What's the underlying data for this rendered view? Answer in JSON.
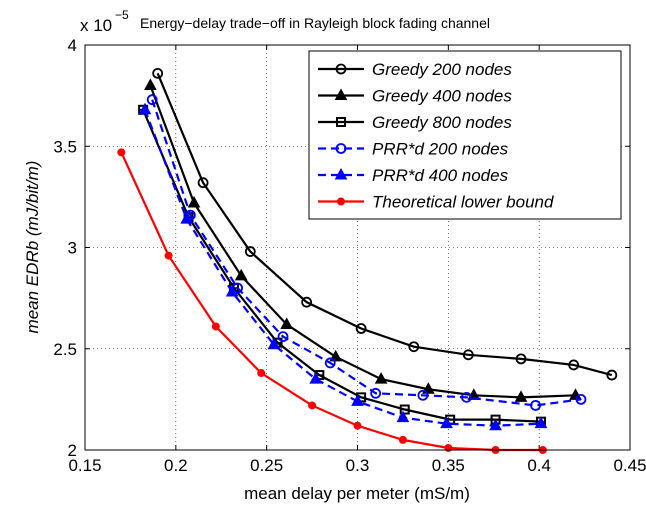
{
  "chart_data": {
    "type": "line",
    "title": "Energy−delay trade−off in Rayleigh block fading channel",
    "y_multiplier_label": "x 10",
    "y_multiplier_exponent": "−5",
    "xlabel": "mean delay per meter (mS/m)",
    "ylabel": "mean EDRb (mJ/bit/m)",
    "xlim": [
      0.15,
      0.45
    ],
    "ylim": [
      2,
      4
    ],
    "xticks": [
      0.15,
      0.2,
      0.25,
      0.3,
      0.35,
      0.4,
      0.45
    ],
    "xtick_labels": [
      "0.15",
      "0.2",
      "0.25",
      "0.3",
      "0.35",
      "0.4",
      "0.45"
    ],
    "yticks": [
      2,
      2.5,
      3,
      3.5,
      4
    ],
    "ytick_labels": [
      "2",
      "2.5",
      "3",
      "3.5",
      "4"
    ],
    "grid": true,
    "legend_position": "top-right",
    "series": [
      {
        "name": "Greedy 200 nodes",
        "color": "#000000",
        "dash": false,
        "marker": "circle-open",
        "x": [
          0.19,
          0.215,
          0.241,
          0.272,
          0.302,
          0.331,
          0.361,
          0.39,
          0.419,
          0.44
        ],
        "y": [
          3.86,
          3.32,
          2.98,
          2.73,
          2.6,
          2.51,
          2.47,
          2.45,
          2.42,
          2.37
        ]
      },
      {
        "name": "Greedy 400 nodes",
        "color": "#000000",
        "dash": false,
        "marker": "triangle",
        "x": [
          0.186,
          0.21,
          0.236,
          0.261,
          0.288,
          0.313,
          0.339,
          0.364,
          0.39,
          0.42
        ],
        "y": [
          3.8,
          3.22,
          2.86,
          2.62,
          2.46,
          2.35,
          2.3,
          2.27,
          2.26,
          2.27
        ]
      },
      {
        "name": "Greedy 800 nodes",
        "color": "#000000",
        "dash": false,
        "marker": "square",
        "x": [
          0.182,
          0.207,
          0.232,
          0.256,
          0.279,
          0.302,
          0.326,
          0.351,
          0.376,
          0.401
        ],
        "y": [
          3.68,
          3.15,
          2.8,
          2.53,
          2.37,
          2.26,
          2.2,
          2.15,
          2.15,
          2.14
        ]
      },
      {
        "name": "PRR*d 200 nodes",
        "color": "#0000ff",
        "dash": true,
        "marker": "circle-open",
        "x": [
          0.187,
          0.208,
          0.234,
          0.259,
          0.285,
          0.31,
          0.336,
          0.36,
          0.398,
          0.423
        ],
        "y": [
          3.73,
          3.16,
          2.8,
          2.56,
          2.43,
          2.28,
          2.27,
          2.26,
          2.22,
          2.25
        ]
      },
      {
        "name": "PRR*d 400 nodes",
        "color": "#0000ff",
        "dash": true,
        "marker": "triangle",
        "x": [
          0.183,
          0.206,
          0.231,
          0.254,
          0.277,
          0.3,
          0.325,
          0.349,
          0.376,
          0.401
        ],
        "y": [
          3.68,
          3.14,
          2.78,
          2.52,
          2.35,
          2.24,
          2.16,
          2.13,
          2.12,
          2.13
        ]
      },
      {
        "name": "Theoretical lower bound",
        "color": "#ff0000",
        "dash": false,
        "marker": "dot",
        "x": [
          0.17,
          0.196,
          0.222,
          0.247,
          0.275,
          0.3,
          0.325,
          0.35,
          0.376,
          0.402
        ],
        "y": [
          3.47,
          2.96,
          2.61,
          2.38,
          2.22,
          2.12,
          2.05,
          2.01,
          2.0,
          2.0
        ]
      }
    ]
  }
}
